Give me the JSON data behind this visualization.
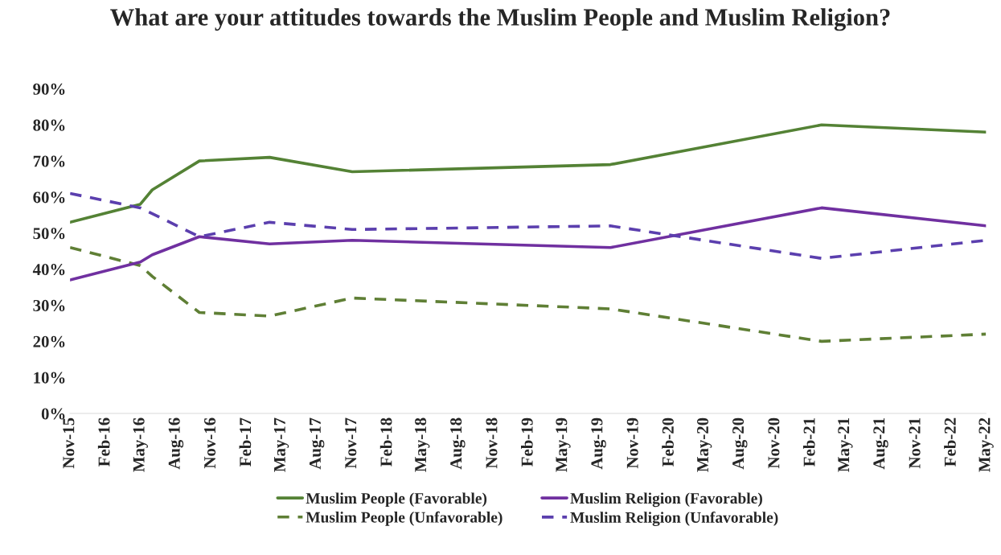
{
  "chart_data": {
    "type": "line",
    "title": "What are your attitudes towards the Muslim People and Muslim Religion?",
    "x": [
      "2015-11",
      "2016-05",
      "2016-06",
      "2016-10",
      "2017-04",
      "2017-11",
      "2019-09",
      "2021-03",
      "2022-05"
    ],
    "series": [
      {
        "name": "Muslim People (Favorable)",
        "color": "#548235",
        "line_style": "solid",
        "values": [
          53,
          58,
          62,
          70,
          71,
          67,
          69,
          80,
          78
        ]
      },
      {
        "name": "Muslim People (Unfavorable)",
        "color": "#5f7f35",
        "line_style": "dashed",
        "values": [
          46,
          41,
          38,
          28,
          27,
          32,
          29,
          20,
          22
        ]
      },
      {
        "name": "Muslim Religion (Favorable)",
        "color": "#7030a0",
        "line_style": "solid",
        "values": [
          37,
          42,
          44,
          49,
          47,
          48,
          46,
          57,
          52
        ]
      },
      {
        "name": "Muslim Religion (Unfavorable)",
        "color": "#5b3fae",
        "line_style": "dashed",
        "x": [
          "2015-11",
          "2016-05",
          "2016-10",
          "2017-04",
          "2017-11",
          "2019-09",
          "2021-03",
          "2022-05"
        ],
        "values": [
          61,
          57,
          49,
          53,
          51,
          52,
          43,
          48
        ]
      }
    ],
    "xlim": [
      "2015-11",
      "2022-05"
    ],
    "xticks": [
      {
        "value": "2015-11",
        "label": "Nov-15"
      },
      {
        "value": "2016-02",
        "label": "Feb-16"
      },
      {
        "value": "2016-05",
        "label": "May-16"
      },
      {
        "value": "2016-08",
        "label": "Aug-16"
      },
      {
        "value": "2016-11",
        "label": "Nov-16"
      },
      {
        "value": "2017-02",
        "label": "Feb-17"
      },
      {
        "value": "2017-05",
        "label": "May-17"
      },
      {
        "value": "2017-08",
        "label": "Aug-17"
      },
      {
        "value": "2017-11",
        "label": "Nov-17"
      },
      {
        "value": "2018-02",
        "label": "Feb-18"
      },
      {
        "value": "2018-05",
        "label": "May-18"
      },
      {
        "value": "2018-08",
        "label": "Aug-18"
      },
      {
        "value": "2018-11",
        "label": "Nov-18"
      },
      {
        "value": "2019-02",
        "label": "Feb-19"
      },
      {
        "value": "2019-05",
        "label": "May-19"
      },
      {
        "value": "2019-08",
        "label": "Aug-19"
      },
      {
        "value": "2019-11",
        "label": "Nov-19"
      },
      {
        "value": "2020-02",
        "label": "Feb-20"
      },
      {
        "value": "2020-05",
        "label": "May-20"
      },
      {
        "value": "2020-08",
        "label": "Aug-20"
      },
      {
        "value": "2020-11",
        "label": "Nov-20"
      },
      {
        "value": "2021-02",
        "label": "Feb-21"
      },
      {
        "value": "2021-05",
        "label": "May-21"
      },
      {
        "value": "2021-08",
        "label": "Aug-21"
      },
      {
        "value": "2021-11",
        "label": "Nov-21"
      },
      {
        "value": "2022-02",
        "label": "Feb-22"
      },
      {
        "value": "2022-05",
        "label": "May-22"
      }
    ],
    "ylim": [
      0,
      90
    ],
    "yticks": [
      {
        "value": 0,
        "label": "0%"
      },
      {
        "value": 10,
        "label": "10%"
      },
      {
        "value": 20,
        "label": "20%"
      },
      {
        "value": 30,
        "label": "30%"
      },
      {
        "value": 40,
        "label": "40%"
      },
      {
        "value": 50,
        "label": "50%"
      },
      {
        "value": 60,
        "label": "60%"
      },
      {
        "value": 70,
        "label": "70%"
      },
      {
        "value": 80,
        "label": "80%"
      },
      {
        "value": 90,
        "label": "90%"
      }
    ],
    "grid": false,
    "legend": "bottom",
    "marker": "none"
  }
}
